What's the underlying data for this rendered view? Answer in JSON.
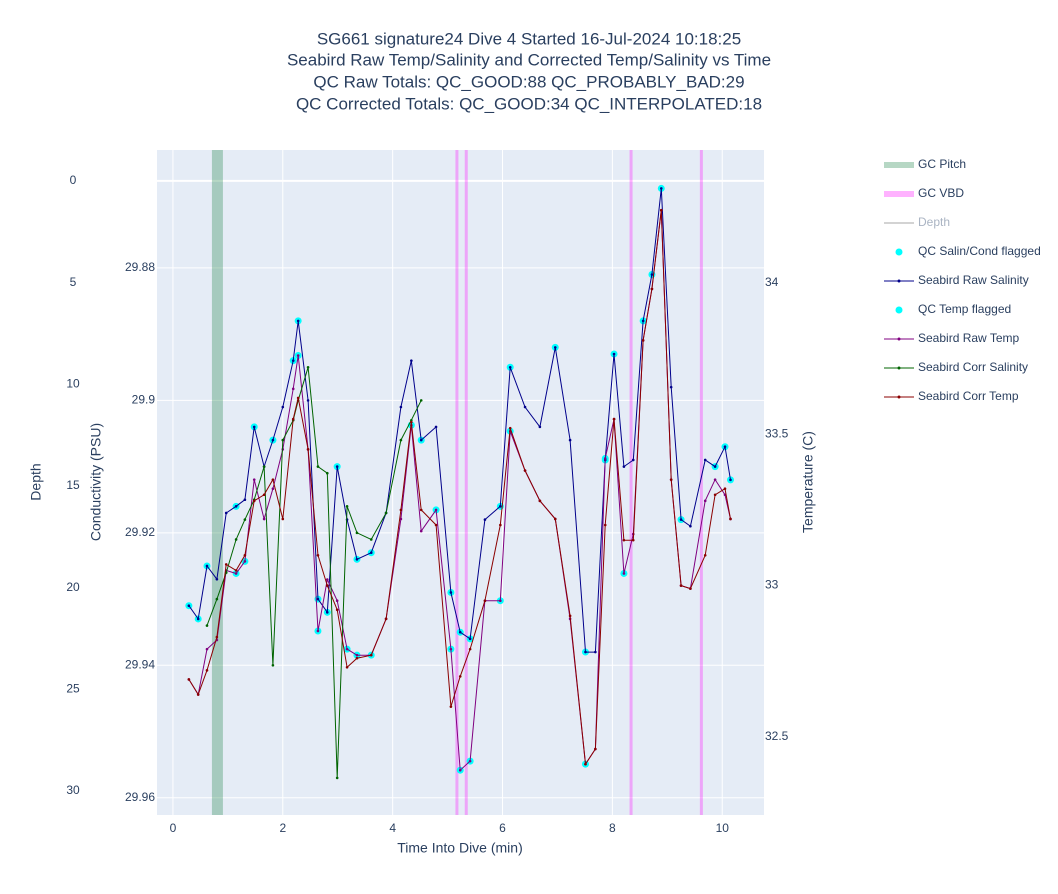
{
  "chart_data": {
    "type": "line",
    "title_lines": [
      "SG661 signature24 Dive 4 Started 16-Jul-2024 10:18:25",
      "Seabird Raw Temp/Salinity and Corrected Temp/Salinity vs Time",
      "QC Raw Totals: QC_GOOD:88 QC_PROBABLY_BAD:29",
      "QC Corrected Totals: QC_GOOD:34 QC_INTERPOLATED:18"
    ],
    "xlabel": "Time Into Dive (min)",
    "ylabel": "Depth",
    "y2label": "Conductivity (PSU)",
    "y3label": "Temperature (C)",
    "xlim": [
      -0.29,
      10.76
    ],
    "xticks": [
      0,
      2,
      4,
      6,
      8,
      10
    ],
    "ylim": [
      31.18,
      -1.52
    ],
    "yticks": [
      0,
      5,
      10,
      15,
      20,
      25,
      30
    ],
    "y2lim": [
      29.9626,
      29.8622
    ],
    "y2ticks": [
      29.88,
      29.9,
      29.92,
      29.94,
      29.96
    ],
    "y3lim": [
      32.242,
      34.439
    ],
    "y3ticks": [
      32.5,
      33,
      33.5,
      34
    ],
    "grid": true,
    "legend": "right",
    "x": [
      0.29,
      0.46,
      0.62,
      0.8,
      0.97,
      1.15,
      1.31,
      1.48,
      1.66,
      1.82,
      2.0,
      2.19,
      2.28,
      2.46,
      2.64,
      2.81,
      2.99,
      3.17,
      3.35,
      3.61,
      3.88,
      4.15,
      4.34,
      4.52,
      4.79,
      5.06,
      5.23,
      5.41,
      5.68,
      5.96,
      6.14,
      6.41,
      6.68,
      6.96,
      7.23,
      7.51,
      7.69,
      7.87,
      8.03,
      8.21,
      8.38,
      8.56,
      8.72,
      8.89,
      9.07,
      9.25,
      9.42,
      9.69,
      9.87,
      10.05,
      10.15
    ],
    "series": [
      {
        "name": "GC Pitch",
        "kind": "band",
        "color": "#2e8b57",
        "x": [
          0.71,
          0.91
        ]
      },
      {
        "name": "GC VBD",
        "kind": "vline",
        "color": "#ff00ff",
        "x": [
          5.17,
          5.34,
          8.34,
          9.62
        ]
      },
      {
        "name": "Depth",
        "kind": "hidden",
        "color": "#d3d3d3"
      },
      {
        "name": "QC Salin/Cond flagged",
        "kind": "flag",
        "axis": "y2",
        "color": "#00ffff",
        "values": [
          29.931,
          29.933,
          29.925,
          null,
          null,
          29.916,
          null,
          29.904,
          null,
          29.906,
          null,
          29.894,
          29.888,
          null,
          29.93,
          29.932,
          29.91,
          null,
          29.924,
          29.923,
          null,
          null,
          null,
          29.906,
          null,
          29.929,
          29.935,
          29.936,
          null,
          29.916,
          29.895,
          null,
          null,
          29.892,
          null,
          29.938,
          null,
          29.909,
          29.893,
          null,
          null,
          29.888,
          29.881,
          29.868,
          null,
          29.918,
          null,
          null,
          29.91,
          29.907,
          29.912
        ]
      },
      {
        "name": "Seabird Raw Salinity",
        "kind": "line",
        "axis": "y2",
        "color": "#00008b",
        "values": [
          29.931,
          29.933,
          29.925,
          29.927,
          29.917,
          29.916,
          29.915,
          29.904,
          29.91,
          29.906,
          29.901,
          29.894,
          29.888,
          29.9,
          29.93,
          29.932,
          29.91,
          29.918,
          29.924,
          29.923,
          29.917,
          29.901,
          29.894,
          29.906,
          29.904,
          29.929,
          29.935,
          29.936,
          29.918,
          29.916,
          29.895,
          29.901,
          29.904,
          29.892,
          29.906,
          29.938,
          29.938,
          29.909,
          29.893,
          29.91,
          29.909,
          29.888,
          29.881,
          29.868,
          29.898,
          29.918,
          29.919,
          29.909,
          29.91,
          29.907,
          29.912
        ]
      },
      {
        "name": "QC Temp flagged",
        "kind": "flag",
        "axis": "y3",
        "color": "#00ffff",
        "values": [
          null,
          null,
          null,
          null,
          null,
          33.04,
          33.08,
          null,
          null,
          null,
          null,
          null,
          33.76,
          null,
          32.85,
          null,
          null,
          32.79,
          32.77,
          32.77,
          null,
          null,
          33.53,
          null,
          33.25,
          32.79,
          32.39,
          32.42,
          null,
          32.95,
          33.51,
          null,
          null,
          null,
          null,
          32.41,
          null,
          33.42,
          null,
          33.04,
          null,
          null,
          null,
          null,
          null,
          null,
          null,
          null,
          null,
          null,
          null
        ]
      },
      {
        "name": "Seabird Raw Temp",
        "kind": "line",
        "axis": "y3",
        "color": "#800080",
        "values": [
          32.69,
          32.64,
          32.79,
          32.82,
          33.05,
          33.04,
          33.08,
          33.35,
          33.22,
          33.32,
          33.45,
          33.65,
          33.76,
          33.45,
          32.85,
          33.02,
          32.95,
          32.79,
          32.77,
          32.77,
          32.89,
          33.22,
          33.53,
          33.18,
          33.25,
          32.79,
          32.39,
          32.42,
          32.95,
          32.95,
          33.51,
          33.38,
          33.28,
          33.22,
          32.89,
          32.41,
          32.46,
          33.42,
          33.55,
          33.04,
          33.17,
          33.81,
          33.98,
          34.24,
          33.35,
          33.0,
          32.99,
          33.28,
          33.35,
          33.3,
          33.22
        ]
      },
      {
        "name": "Seabird Corr Salinity",
        "kind": "line",
        "axis": "y2",
        "color": "#006400",
        "values": [
          null,
          null,
          29.934,
          29.93,
          29.926,
          29.921,
          29.918,
          29.915,
          29.91,
          29.94,
          29.906,
          29.903,
          29.9,
          29.895,
          29.91,
          29.911,
          29.957,
          29.916,
          29.92,
          29.921,
          29.917,
          29.906,
          29.903,
          29.9,
          null,
          null,
          null,
          null,
          null,
          null,
          null,
          null,
          null,
          null,
          null,
          null,
          null,
          null,
          null,
          null,
          null,
          null,
          null,
          null,
          null,
          null,
          null,
          null,
          null,
          null,
          null
        ]
      },
      {
        "name": "Seabird Corr Temp",
        "kind": "line",
        "axis": "y3",
        "color": "#8b0000",
        "values": [
          32.69,
          32.64,
          32.72,
          32.83,
          33.07,
          33.05,
          33.1,
          33.28,
          33.3,
          33.35,
          33.22,
          33.55,
          33.62,
          33.45,
          33.1,
          33.0,
          32.92,
          32.73,
          32.76,
          32.77,
          32.89,
          33.25,
          33.54,
          33.25,
          33.2,
          32.6,
          32.7,
          32.79,
          32.95,
          33.2,
          33.52,
          33.38,
          33.28,
          33.22,
          32.9,
          32.41,
          32.46,
          33.2,
          33.55,
          33.15,
          33.15,
          33.81,
          33.98,
          34.24,
          33.35,
          33.0,
          32.99,
          33.1,
          33.3,
          33.32,
          33.22
        ]
      }
    ]
  }
}
